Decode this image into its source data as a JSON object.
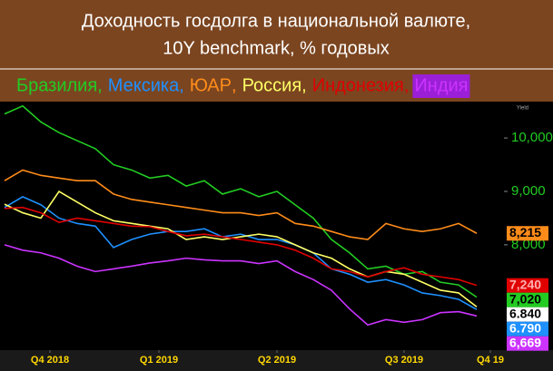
{
  "chart_data": {
    "type": "line",
    "title": [
      "Доходность госдолга в национальной валюте,",
      "10Y benchmark, % годовых"
    ],
    "legend_separator": ",",
    "axis_label": "Yield",
    "xlim": [
      0,
      27.5
    ],
    "xticks": [
      {
        "value": 2.5,
        "label": "Q4 2018"
      },
      {
        "value": 8.5,
        "label": "Q1 2019"
      },
      {
        "value": 15,
        "label": "Q2 2019"
      },
      {
        "value": 22,
        "label": "Q3 2019"
      },
      {
        "value": 26.75,
        "label": "Q4 19"
      }
    ],
    "ylim": [
      6.08,
      10.63
    ],
    "yticks": [
      {
        "value": 8,
        "label": "8,000"
      },
      {
        "value": 9,
        "label": "9,000"
      },
      {
        "value": 10,
        "label": "10,000"
      }
    ],
    "grid": false,
    "series": [
      {
        "name": "Бразилия",
        "color": "#22cc22",
        "label_text": "#000000",
        "values": [
          10.45,
          10.6,
          10.3,
          10.1,
          9.95,
          9.8,
          9.5,
          9.4,
          9.25,
          9.3,
          9.1,
          9.2,
          8.95,
          9.05,
          8.9,
          9.0,
          8.75,
          8.5,
          8.1,
          7.85,
          7.55,
          7.6,
          7.45,
          7.5,
          7.3,
          7.25,
          7.02
        ],
        "value_labels": [
          null,
          null,
          null,
          null,
          null,
          null,
          null,
          null,
          null,
          null,
          null,
          null,
          null,
          null,
          null,
          null,
          null,
          null,
          null,
          null,
          null,
          null,
          null,
          null,
          null,
          null,
          "7,020"
        ]
      },
      {
        "name": "Мексика",
        "color": "#1e90ff",
        "label_text": "#ffffff",
        "values": [
          8.7,
          8.9,
          8.75,
          8.5,
          8.4,
          8.35,
          7.95,
          8.1,
          8.2,
          8.25,
          8.25,
          8.3,
          8.15,
          8.2,
          8.1,
          8.1,
          8.0,
          7.85,
          7.55,
          7.45,
          7.3,
          7.35,
          7.25,
          7.1,
          7.05,
          6.98,
          6.79
        ],
        "value_labels": [
          null,
          null,
          null,
          null,
          null,
          null,
          null,
          null,
          null,
          null,
          null,
          null,
          null,
          null,
          null,
          null,
          null,
          null,
          null,
          null,
          null,
          null,
          null,
          null,
          null,
          null,
          "6.790"
        ]
      },
      {
        "name": "ЮАР",
        "color": "#ff8c1a",
        "label_text": "#000000",
        "values": [
          9.2,
          9.4,
          9.3,
          9.25,
          9.2,
          9.2,
          8.95,
          8.85,
          8.8,
          8.75,
          8.7,
          8.65,
          8.6,
          8.6,
          8.55,
          8.6,
          8.4,
          8.35,
          8.25,
          8.15,
          8.1,
          8.4,
          8.3,
          8.25,
          8.3,
          8.4,
          8.215
        ],
        "value_labels": [
          null,
          null,
          null,
          null,
          null,
          null,
          null,
          null,
          null,
          null,
          null,
          null,
          null,
          null,
          null,
          null,
          null,
          null,
          null,
          null,
          null,
          null,
          null,
          null,
          null,
          null,
          "8,215"
        ]
      },
      {
        "name": "Россия",
        "color": "#ffff66",
        "label_text": "#000000",
        "label_box": "#ffffff",
        "values": [
          8.76,
          8.6,
          8.5,
          9.0,
          8.8,
          8.6,
          8.45,
          8.4,
          8.35,
          8.3,
          8.1,
          8.15,
          8.1,
          8.15,
          8.2,
          8.15,
          8.0,
          7.85,
          7.75,
          7.55,
          7.4,
          7.5,
          7.45,
          7.3,
          7.15,
          7.1,
          6.84
        ],
        "value_labels": [
          null,
          null,
          null,
          null,
          null,
          null,
          null,
          null,
          null,
          null,
          null,
          null,
          null,
          null,
          null,
          null,
          null,
          null,
          null,
          null,
          null,
          null,
          null,
          null,
          null,
          null,
          "6.840"
        ]
      },
      {
        "name": "Индонезия",
        "color": "#e00000",
        "label_text": "#ffb0b0",
        "values": [
          8.68,
          8.7,
          8.6,
          8.42,
          8.5,
          8.45,
          8.4,
          8.35,
          8.34,
          8.25,
          8.17,
          8.2,
          8.15,
          8.1,
          8.05,
          8.0,
          7.9,
          7.75,
          7.55,
          7.5,
          7.4,
          7.5,
          7.57,
          7.45,
          7.4,
          7.35,
          7.24
        ],
        "value_labels": [
          null,
          null,
          null,
          null,
          null,
          null,
          null,
          null,
          null,
          null,
          null,
          null,
          null,
          null,
          null,
          null,
          null,
          null,
          null,
          null,
          null,
          null,
          null,
          null,
          null,
          null,
          "7,240"
        ]
      },
      {
        "name": "Индия",
        "color": "#cc33ff",
        "label_text": "#ffffff",
        "legend_box": "#9b1fd6",
        "values": [
          8.0,
          7.9,
          7.85,
          7.75,
          7.6,
          7.5,
          7.55,
          7.6,
          7.66,
          7.7,
          7.75,
          7.72,
          7.7,
          7.7,
          7.65,
          7.7,
          7.5,
          7.35,
          7.15,
          6.8,
          6.5,
          6.6,
          6.55,
          6.6,
          6.73,
          6.75,
          6.669
        ],
        "value_labels": [
          null,
          null,
          null,
          null,
          null,
          null,
          null,
          null,
          null,
          null,
          null,
          null,
          null,
          null,
          null,
          null,
          null,
          null,
          null,
          null,
          null,
          null,
          null,
          null,
          null,
          null,
          "6,669"
        ]
      }
    ]
  }
}
